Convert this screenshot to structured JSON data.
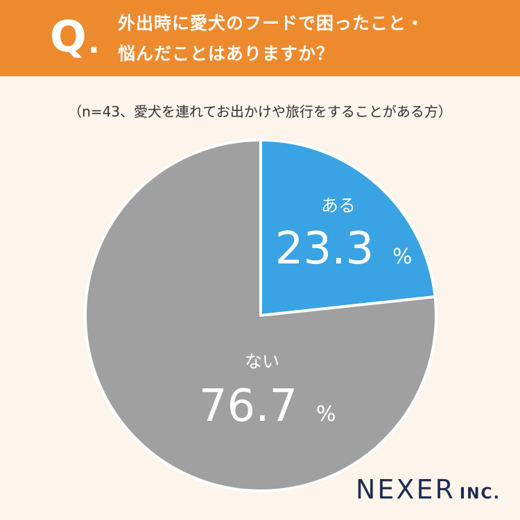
{
  "header": {
    "q_letter": "Q",
    "q_dot": ".",
    "question_line1": "外出時に愛犬のフードで困ったこと・",
    "question_line2": "悩んだことはありますか？"
  },
  "note": "（n=43、愛犬を連れてお出かけや旅行をすることがある方）",
  "chart_data": {
    "type": "pie",
    "start_angle_deg": 0,
    "direction": "clockwise",
    "slices": [
      {
        "label": "ある",
        "value": 23.3,
        "value_text": "23.3",
        "unit": "%",
        "color": "#3aa3e3"
      },
      {
        "label": "ない",
        "value": 76.7,
        "value_text": "76.7",
        "unit": "%",
        "color": "#a0a0a0"
      }
    ]
  },
  "logo": {
    "main": "NEXER",
    "sub": "INC.",
    "color": "#1f2d50"
  },
  "colors": {
    "header_bg": "#ee8a2e",
    "background": "#fdf4ec",
    "slice_border": "#ffffff"
  }
}
